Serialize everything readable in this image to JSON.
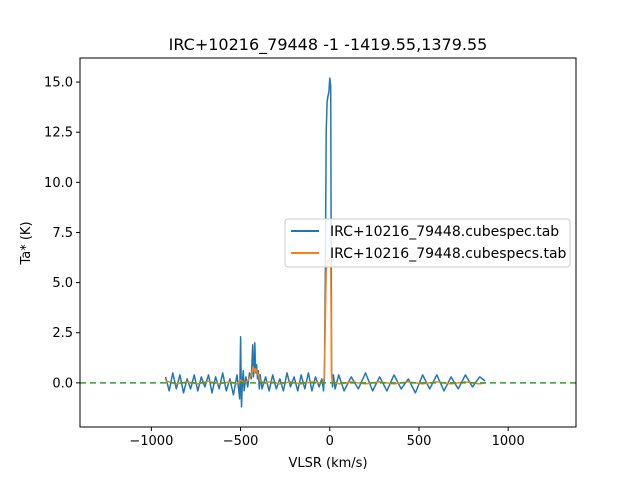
{
  "chart_data": {
    "type": "line",
    "title": "IRC+10216_79448 -1 -1419.55,1379.55",
    "xlabel": "VLSR (km/s)",
    "ylabel": "Ta* (K)",
    "xlim": [
      -1400,
      1380
    ],
    "ylim": [
      -2.2,
      16.2
    ],
    "xticks": [
      -1000,
      -500,
      0,
      500,
      1000
    ],
    "xtick_labels": [
      "−1000",
      "−500",
      "0",
      "500",
      "1000"
    ],
    "yticks": [
      0.0,
      2.5,
      5.0,
      7.5,
      10.0,
      12.5,
      15.0
    ],
    "ytick_labels": [
      "0.0",
      "2.5",
      "5.0",
      "7.5",
      "10.0",
      "12.5",
      "15.0"
    ],
    "legend_position": "right",
    "series": [
      {
        "name": "IRC+10216_79448.cubespec.tab",
        "color": "#1f77b4",
        "x": [
          -920,
          -900,
          -880,
          -860,
          -840,
          -820,
          -800,
          -780,
          -760,
          -740,
          -720,
          -700,
          -680,
          -660,
          -640,
          -620,
          -600,
          -580,
          -560,
          -540,
          -520,
          -505,
          -500,
          -495,
          -490,
          -485,
          -480,
          -470,
          -460,
          -450,
          -440,
          -432,
          -428,
          -424,
          -420,
          -415,
          -410,
          -405,
          -400,
          -395,
          -390,
          -380,
          -360,
          -340,
          -320,
          -300,
          -280,
          -260,
          -240,
          -220,
          -200,
          -180,
          -160,
          -140,
          -120,
          -100,
          -80,
          -60,
          -45,
          -40,
          -35,
          -30,
          -25,
          -20,
          -15,
          -10,
          -5,
          0,
          5,
          10,
          15,
          20,
          30,
          50,
          80,
          120,
          160,
          200,
          240,
          280,
          320,
          360,
          400,
          440,
          480,
          520,
          560,
          600,
          640,
          680,
          720,
          760,
          800,
          840,
          870
        ],
        "y": [
          0.3,
          -0.4,
          0.5,
          -0.3,
          0.4,
          -0.5,
          0.2,
          -0.3,
          0.4,
          -0.4,
          0.3,
          -0.2,
          0.4,
          -0.5,
          0.3,
          -0.3,
          0.5,
          -0.4,
          0.2,
          -0.6,
          0.4,
          -0.8,
          2.3,
          -1.2,
          0.1,
          0.6,
          -0.4,
          0.3,
          -0.2,
          0.5,
          0.2,
          1.9,
          0.3,
          0.8,
          2.0,
          0.5,
          0.9,
          0.2,
          0.6,
          -0.3,
          0.4,
          -0.3,
          0.3,
          -0.4,
          0.4,
          -0.3,
          0.2,
          -0.4,
          0.5,
          -0.2,
          0.3,
          -0.4,
          0.4,
          -0.3,
          0.5,
          -0.4,
          0.3,
          -0.2,
          0.2,
          0.0,
          -0.4,
          0.4,
          5.0,
          12.5,
          14.0,
          14.3,
          14.5,
          15.2,
          14.8,
          0.6,
          -0.2,
          0.4,
          -0.3,
          0.4,
          -0.4,
          0.3,
          -0.3,
          0.5,
          -0.4,
          0.3,
          -0.4,
          0.4,
          -0.3,
          0.2,
          -0.5,
          0.4,
          -0.3,
          0.4,
          -0.4,
          0.3,
          -0.3,
          0.4,
          -0.2,
          0.3,
          0.1
        ]
      },
      {
        "name": "IRC+10216_79448.cubespecs.tab",
        "color": "#ff7f0e",
        "x": [
          -920,
          -860,
          -800,
          -740,
          -680,
          -620,
          -560,
          -520,
          -500,
          -480,
          -460,
          -440,
          -430,
          -425,
          -420,
          -415,
          -410,
          -400,
          -390,
          -370,
          -330,
          -280,
          -220,
          -160,
          -100,
          -60,
          -40,
          -30,
          -25,
          -20,
          -15,
          -10,
          -5,
          0,
          5,
          10,
          15,
          25,
          60,
          120,
          200,
          280,
          360,
          440,
          520,
          600,
          680,
          760,
          840,
          870
        ],
        "y": [
          0.1,
          -0.05,
          0.05,
          -0.05,
          0.08,
          -0.05,
          0.05,
          -0.05,
          0.15,
          0.0,
          0.1,
          0.4,
          0.8,
          0.6,
          0.5,
          0.7,
          0.6,
          0.4,
          0.1,
          0.0,
          0.05,
          -0.05,
          0.05,
          -0.05,
          0.05,
          0.0,
          0.0,
          0.3,
          3.0,
          5.5,
          6.0,
          6.1,
          6.0,
          6.2,
          5.9,
          0.4,
          0.05,
          0.0,
          -0.05,
          0.05,
          -0.05,
          0.05,
          -0.05,
          0.05,
          -0.05,
          0.05,
          -0.05,
          0.05,
          -0.05,
          0.0
        ]
      },
      {
        "name": "",
        "color": "#2ca02c",
        "dashed": true,
        "x": [
          -1400,
          1380
        ],
        "y": [
          0,
          0
        ]
      }
    ]
  }
}
